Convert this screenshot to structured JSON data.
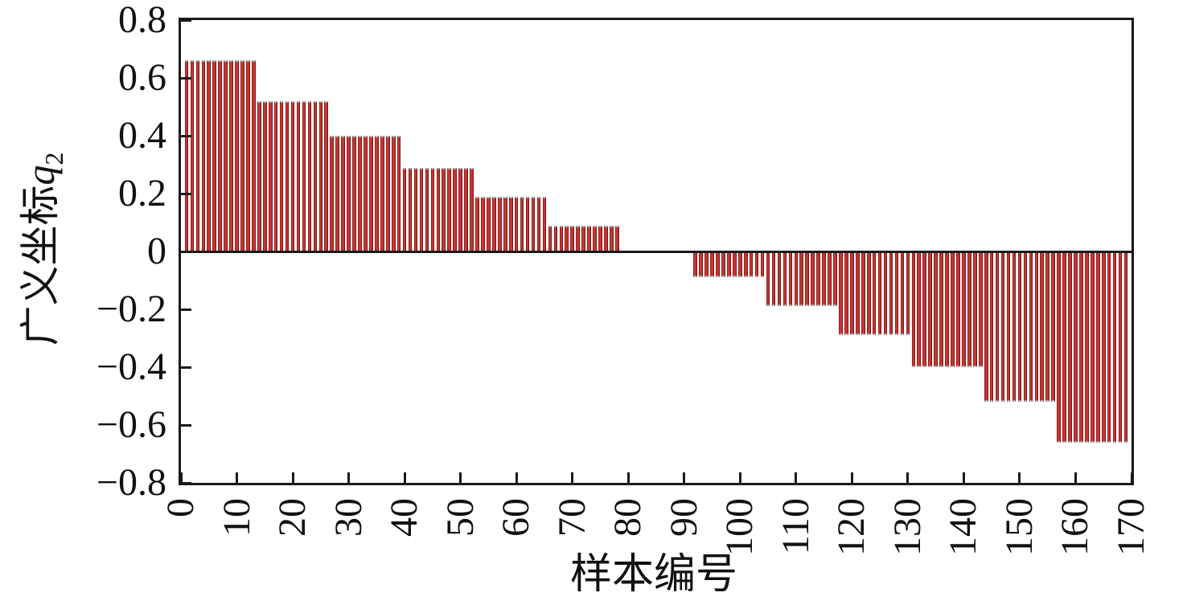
{
  "chart_data": {
    "type": "bar",
    "title": "",
    "xlabel": "样本编号",
    "ylabel": "广义坐标q2",
    "ylabel_parts": {
      "cjk": "广义坐标",
      "variable": "q",
      "subscript": "2"
    },
    "xlim": [
      0,
      170
    ],
    "ylim": [
      -0.8,
      0.8
    ],
    "grid": false,
    "legend": "none",
    "x_tick_interval": 10,
    "x_tick_labels": [
      "0",
      "10",
      "20",
      "30",
      "40",
      "50",
      "60",
      "70",
      "80",
      "90",
      "100",
      "110",
      "120",
      "130",
      "140",
      "150",
      "160",
      "170"
    ],
    "y_tick_values": [
      0.8,
      0.6,
      0.4,
      0.2,
      0,
      -0.2,
      -0.4,
      -0.6,
      -0.8
    ],
    "y_tick_labels": [
      "0.8",
      "0.6",
      "0.4",
      "0.2",
      "0",
      "−0.2",
      "−0.4",
      "−0.6",
      "−0.8"
    ],
    "sample_start": 1,
    "samples_per_step": 13,
    "step_values": [
      0.66,
      0.52,
      0.4,
      0.29,
      0.19,
      0.09,
      0,
      -0.09,
      -0.19,
      -0.29,
      -0.4,
      -0.52,
      -0.66
    ],
    "bar_color": "#c93431",
    "bar_edge_dark": "#6f1412",
    "bar_edge_light": "#952522",
    "bar_cap_color": "#b5b5b5",
    "axis_color": "#1a1a1a",
    "background_color": "#ffffff"
  }
}
